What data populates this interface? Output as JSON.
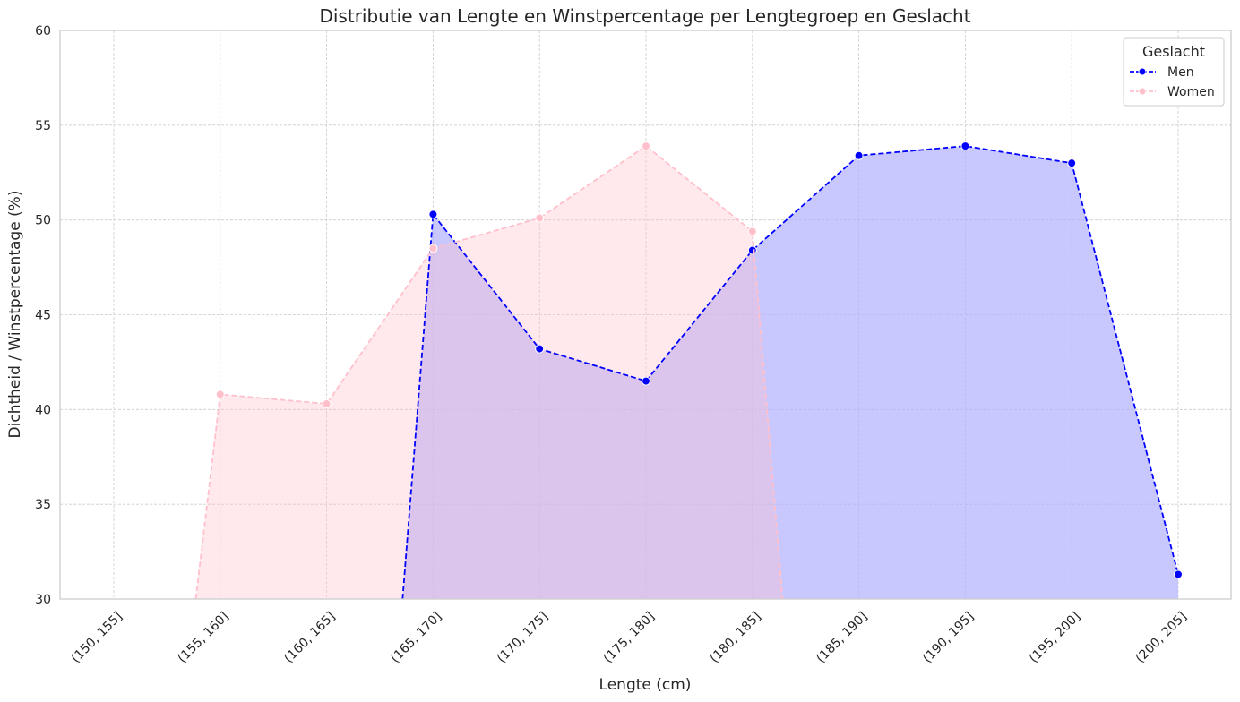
{
  "chart_data": {
    "type": "area",
    "title": "Distributie van Lengte en Winstpercentage per Lengtegroep en Geslacht",
    "xlabel": "Lengte (cm)",
    "ylabel": "Dichtheid / Winstpercentage (%)",
    "categories": [
      "(150, 155]",
      "(155, 160]",
      "(160, 165]",
      "(165, 170]",
      "(170, 175]",
      "(175, 180]",
      "(180, 185]",
      "(185, 190]",
      "(190, 195]",
      "(195, 200]",
      "(200, 205]"
    ],
    "ylim": [
      30,
      60
    ],
    "yticks": [
      30,
      35,
      40,
      45,
      50,
      55,
      60
    ],
    "grid": true,
    "legend": {
      "title": "Geslacht",
      "position": "top-right"
    },
    "series": [
      {
        "name": "Men",
        "color": "#0000ff",
        "fill": "#b0b0ff",
        "values": [
          null,
          null,
          null,
          50.3,
          43.2,
          41.5,
          48.4,
          53.4,
          53.9,
          53.0,
          31.3
        ]
      },
      {
        "name": "Women",
        "color": "#ffc0cb",
        "fill": "#ffc0cb",
        "values": [
          null,
          40.8,
          40.3,
          48.5,
          50.1,
          53.9,
          49.4,
          null,
          null,
          null,
          null
        ]
      }
    ]
  }
}
